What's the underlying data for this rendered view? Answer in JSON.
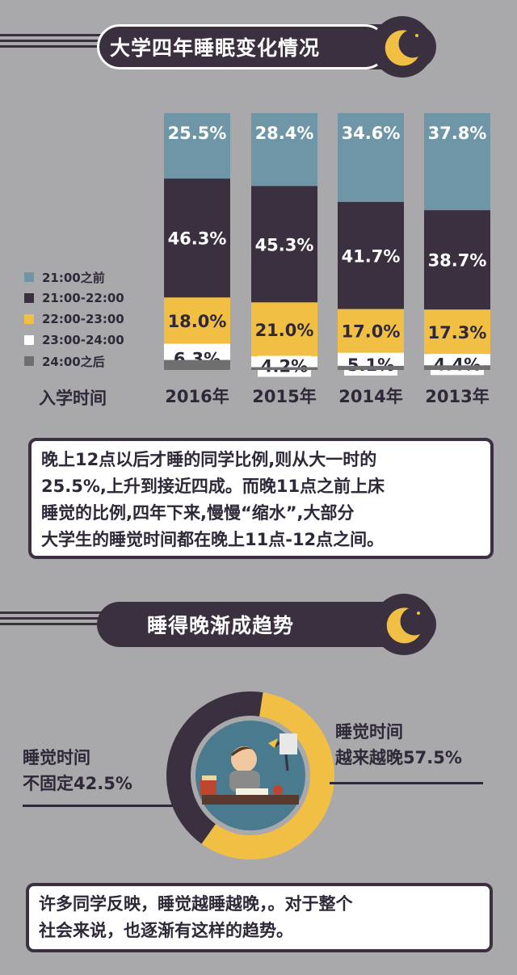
{
  "section1": {
    "title": "大学四年睡眠变化情况"
  },
  "chart_data": {
    "type": "bar",
    "stacked": true,
    "orientation": "vertical",
    "categories": [
      "2016年",
      "2015年",
      "2014年",
      "2013年"
    ],
    "x_axis_label": "入学时间",
    "series": [
      {
        "name": "21:00之前",
        "color": "#6e96a6",
        "values": [
          25.5,
          28.4,
          34.6,
          37.8
        ],
        "labels": [
          "25.5%",
          "28.4%",
          "34.6%",
          "37.8%"
        ]
      },
      {
        "name": "21:00-22:00",
        "color": "#3a3040",
        "values": [
          46.3,
          45.3,
          41.7,
          38.7
        ],
        "labels": [
          "46.3%",
          "45.3%",
          "41.7%",
          "38.7%"
        ]
      },
      {
        "name": "22:00-23:00",
        "color": "#f1bf44",
        "values": [
          18.0,
          21.0,
          17.0,
          17.3
        ],
        "labels": [
          "18.0%",
          "21.0%",
          "17.0%",
          "17.3%"
        ]
      },
      {
        "name": "23:00-24:00",
        "color": "#ffffff",
        "values": [
          6.3,
          4.2,
          5.1,
          4.4
        ],
        "labels": [
          "6.3%",
          "4.2%",
          "5.1%",
          "4.4%"
        ]
      },
      {
        "name": "24:00之后",
        "color": "#6f6f70",
        "values": [
          3.9,
          1.1,
          1.6,
          1.8
        ],
        "labels": [
          "",
          "",
          "",
          ""
        ]
      }
    ],
    "legend_position": "left"
  },
  "text1": {
    "lines": [
      "晚上12点以后才睡的同学比例,则从大一时的",
      "25.5%,上升到接近四成。而晚11点之前上床",
      "睡觉的比例,四年下来,慢慢“缩水”,大部分",
      "大学生的睡觉时间都在晚上11点-12点之间。"
    ]
  },
  "section2": {
    "title": "睡得晚渐成趋势"
  },
  "donut": {
    "type": "pie",
    "slices": [
      {
        "label_line1": "睡觉时间",
        "label_line2": "越来越晚57.5%",
        "value": 57.5,
        "color": "#f1bf44"
      },
      {
        "label_line1": "睡觉时间",
        "label_line2": "不固定42.5%",
        "value": 42.5,
        "color": "#3a3040"
      }
    ]
  },
  "text2": {
    "lines": [
      "许多同学反映，睡觉越睡越晚，。对于整个",
      "社会来说，也逐渐有这样的趋势。"
    ]
  }
}
